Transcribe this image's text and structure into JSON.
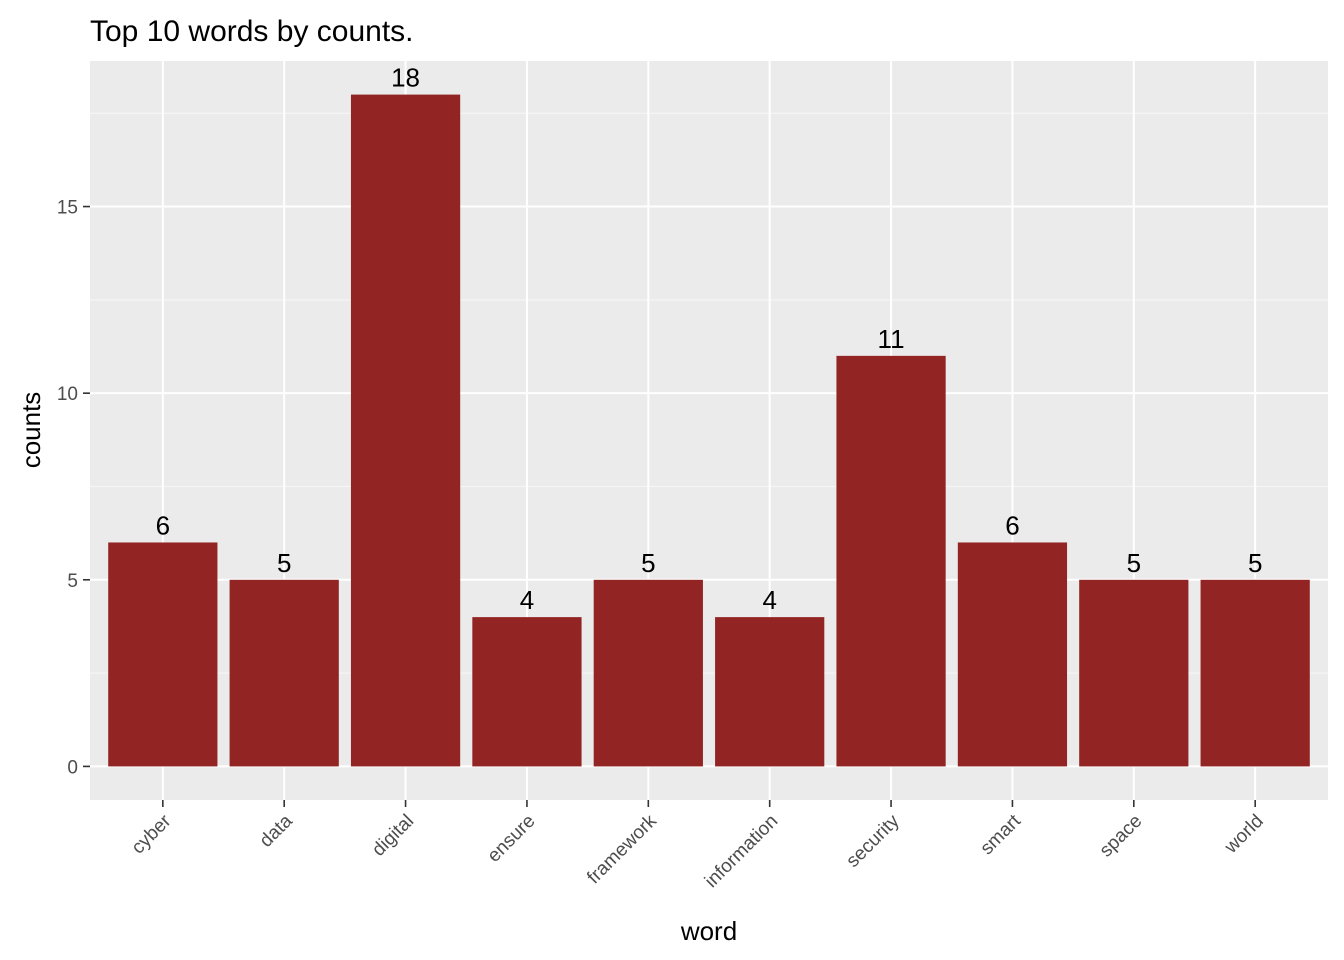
{
  "chart_data": {
    "type": "bar",
    "title": "Top 10 words by counts.",
    "xlabel": "word",
    "ylabel": "counts",
    "categories": [
      "cyber",
      "data",
      "digital",
      "ensure",
      "framework",
      "information",
      "security",
      "smart",
      "space",
      "world"
    ],
    "values": [
      6,
      5,
      18,
      4,
      5,
      4,
      11,
      6,
      5,
      5
    ],
    "data_labels": [
      "6",
      "5",
      "18",
      "4",
      "5",
      "4",
      "11",
      "6",
      "5",
      "5"
    ],
    "ylim": [
      -0.9,
      18.9
    ],
    "yticks": [
      0,
      5,
      10,
      15
    ],
    "ytick_labels": [
      "0",
      "5",
      "10",
      "15"
    ],
    "grid": true,
    "legend": "none",
    "colors": {
      "bar": "#922524",
      "panel": "#ebebeb",
      "grid_major": "#ffffff",
      "grid_minor": "#f5f5f5",
      "tick_text": "#4d4d4d",
      "tick_mark": "#333333"
    }
  }
}
